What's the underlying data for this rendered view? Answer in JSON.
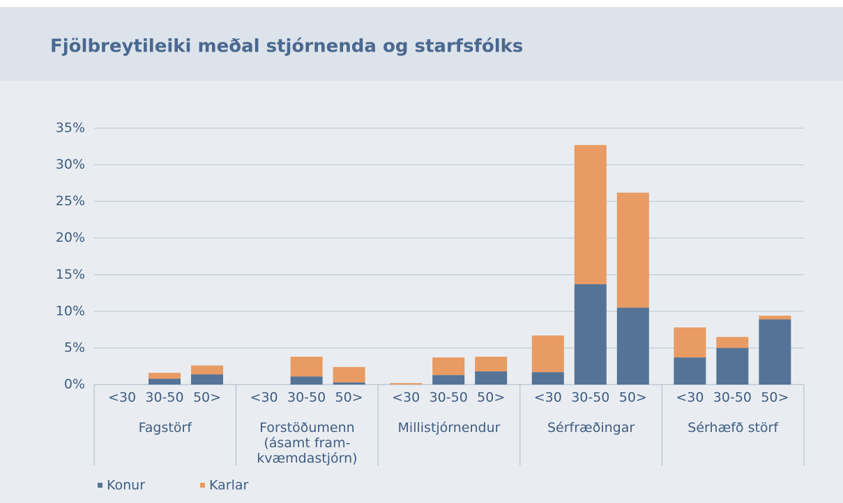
{
  "chart_data": {
    "type": "bar",
    "stacked": true,
    "title": "Fjölbreytileiki meðal stjórnenda og starfsfólks",
    "groups": [
      "Fagstörf",
      "Forstöðumenn (ásamt fram-kvæmdastjórn)",
      "Millistjórnendur",
      "Sérfræðingar",
      "Sérhæfð störf"
    ],
    "categories": [
      "<30",
      "30-50",
      "50>",
      "<30",
      "30-50",
      "50>",
      "<30",
      "30-50",
      "50>",
      "<30",
      "30-50",
      "50>",
      "<30",
      "30-50",
      "50>"
    ],
    "series": [
      {
        "name": "Konur",
        "color": "#557396",
        "values": [
          0,
          0.8,
          1.4,
          0,
          1.1,
          0.3,
          0,
          1.3,
          1.8,
          1.7,
          13.7,
          10.5,
          3.7,
          5.0,
          8.9
        ]
      },
      {
        "name": "Karlar",
        "color": "#e89b62",
        "values": [
          0,
          0.8,
          1.2,
          0,
          2.7,
          2.1,
          0.2,
          2.4,
          2.0,
          5.0,
          19.0,
          15.7,
          4.1,
          1.5,
          0.5
        ]
      }
    ],
    "ylim": [
      0,
      35
    ],
    "yticks": [
      {
        "value": 0,
        "label": "0%"
      },
      {
        "value": 5,
        "label": "5%"
      },
      {
        "value": 10,
        "label": "10%"
      },
      {
        "value": 15,
        "label": "15%"
      },
      {
        "value": 20,
        "label": "20%"
      },
      {
        "value": 25,
        "label": "25%"
      },
      {
        "value": 30,
        "label": "30%"
      },
      {
        "value": 35,
        "label": "35%"
      }
    ],
    "grid": true,
    "legend": "bottom-left"
  }
}
